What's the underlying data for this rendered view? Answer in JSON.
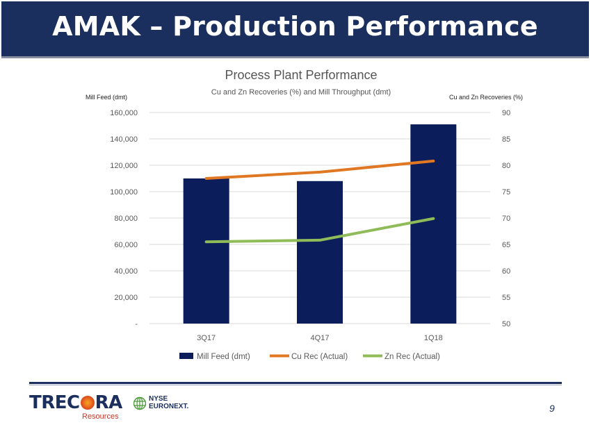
{
  "slide": {
    "title": "AMAK – Production Performance",
    "page_number": "9"
  },
  "logos": {
    "trecora_pre": "TREC",
    "trecora_post": "RA",
    "trecora_sub": "Resources",
    "nyse_line1": "NYSE",
    "nyse_line2": "EURONEXT."
  },
  "colors": {
    "title_bg": "#1a2f5e",
    "bar": "#0b1e5b",
    "cu_line": "#e07722",
    "zn_line": "#8fbb58"
  },
  "chart_data": {
    "type": "bar",
    "title": "Process Plant Performance",
    "subtitle": "Cu and Zn Recoveries (%) and Mill Throughput (dmt)",
    "y_left_label": "Mill Feed (dmt)",
    "y_right_label": "Cu and Zn Recoveries (%)",
    "categories": [
      "3Q17",
      "4Q17",
      "1Q18"
    ],
    "y_left_ticks": [
      "-",
      "20,000",
      "40,000",
      "60,000",
      "80,000",
      "100,000",
      "120,000",
      "140,000",
      "160,000"
    ],
    "y_left_range": [
      0,
      160000
    ],
    "y_right_ticks": [
      "50",
      "55",
      "60",
      "65",
      "70",
      "75",
      "80",
      "85",
      "90"
    ],
    "y_right_range": [
      50,
      90
    ],
    "series": [
      {
        "name": "Mill Feed (dmt)",
        "kind": "bar",
        "axis": "left",
        "values": [
          110000,
          108000,
          151000
        ]
      },
      {
        "name": "Cu Rec (Actual)",
        "kind": "line",
        "axis": "right",
        "values": [
          77.5,
          78.7,
          80.8
        ]
      },
      {
        "name": "Zn Rec (Actual)",
        "kind": "line",
        "axis": "right",
        "values": [
          65.5,
          65.8,
          69.9
        ]
      }
    ],
    "legend_position": "bottom"
  }
}
